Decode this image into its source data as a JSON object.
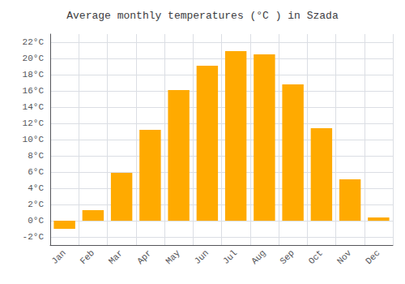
{
  "chart_data": {
    "type": "bar",
    "title": "Average monthly temperatures (°C ) in Szada",
    "categories": [
      "Jan",
      "Feb",
      "Mar",
      "Apr",
      "May",
      "Jun",
      "Jul",
      "Aug",
      "Sep",
      "Oct",
      "Nov",
      "Dec"
    ],
    "values": [
      -1.0,
      1.3,
      5.9,
      11.2,
      16.1,
      19.1,
      20.9,
      20.5,
      16.8,
      11.4,
      5.1,
      0.4
    ],
    "color": "#FFAA00",
    "ylim": [
      -3,
      23
    ],
    "yticks": [
      {
        "value": -2,
        "label": "-2°C"
      },
      {
        "value": 0,
        "label": "0°C"
      },
      {
        "value": 2,
        "label": "2°C"
      },
      {
        "value": 4,
        "label": "4°C"
      },
      {
        "value": 6,
        "label": "6°C"
      },
      {
        "value": 8,
        "label": "8°C"
      },
      {
        "value": 10,
        "label": "10°C"
      },
      {
        "value": 12,
        "label": "12°C"
      },
      {
        "value": 14,
        "label": "14°C"
      },
      {
        "value": 16,
        "label": "16°C"
      },
      {
        "value": 18,
        "label": "18°C"
      },
      {
        "value": 20,
        "label": "20°C"
      },
      {
        "value": 22,
        "label": "22°C"
      }
    ],
    "grid": true
  }
}
